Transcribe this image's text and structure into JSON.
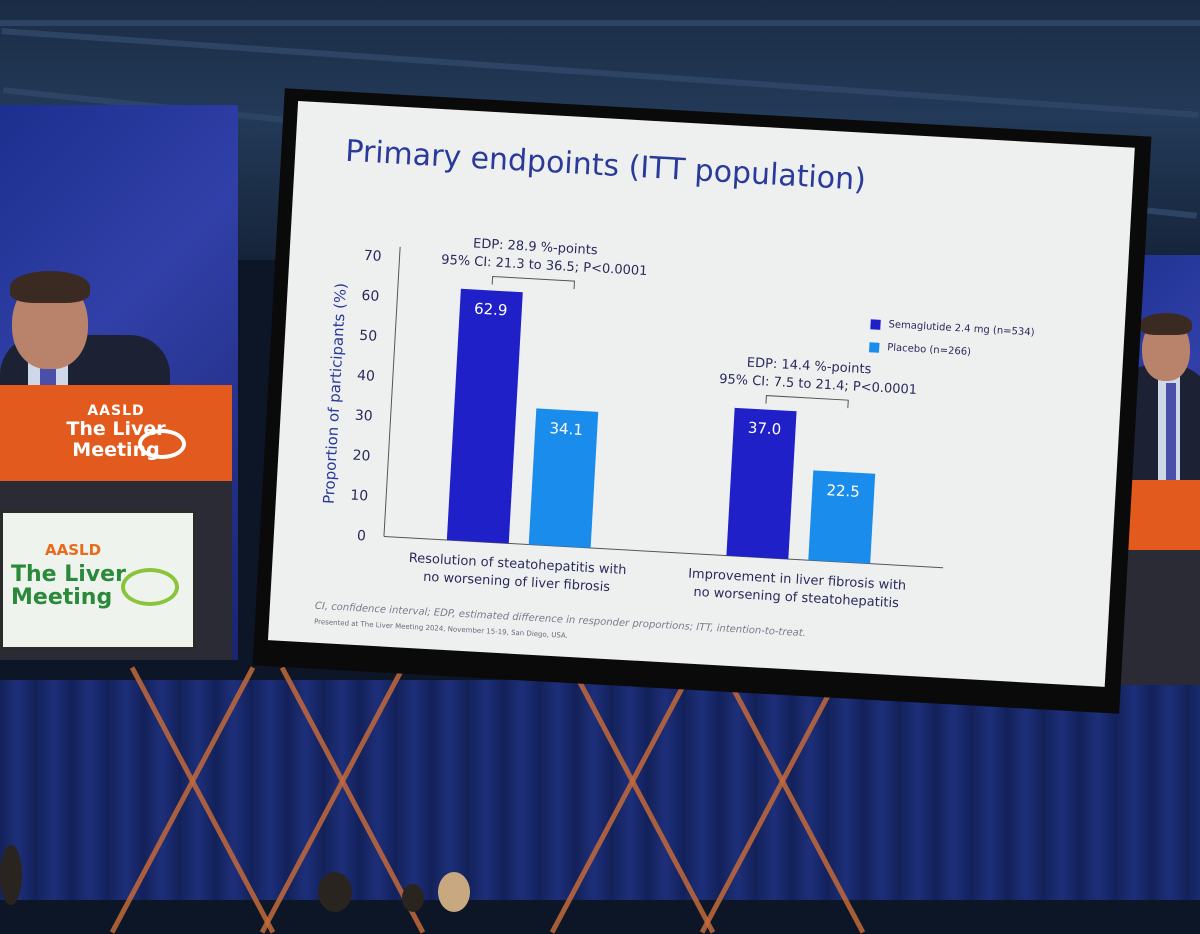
{
  "slide": {
    "title": "Primary endpoints (ITT population)",
    "footnote": "CI, confidence interval; EDP, estimated difference in responder proportions; ITT, intention-to-treat.",
    "presented": "Presented at The Liver Meeting 2024, November 15-19, San Diego, USA."
  },
  "branding": {
    "org": "AASLD",
    "meeting_line1": "The Liver",
    "meeting_line2": "Meeting",
    "registered": "®"
  },
  "chart_data": {
    "type": "bar",
    "ylabel": "Proportion of participants (%)",
    "ylim": [
      0,
      70
    ],
    "yticks": [
      0,
      10,
      20,
      30,
      40,
      50,
      60,
      70
    ],
    "categories": [
      [
        "Resolution of steatohepatitis with",
        "no worsening of liver fibrosis"
      ],
      [
        "Improvement in liver fibrosis with",
        "no worsening of steatohepatitis"
      ]
    ],
    "series": [
      {
        "name": "Semaglutide 2.4 mg (n=534)",
        "color": "#2020c8",
        "values": [
          62.9,
          37.0
        ],
        "labels": [
          "62.9",
          "37.0"
        ]
      },
      {
        "name": "Placebo (n=266)",
        "color": "#1a8cec",
        "values": [
          34.1,
          22.5
        ],
        "labels": [
          "34.1",
          "22.5"
        ]
      }
    ],
    "annotations": [
      {
        "line1": "EDP: 28.9 %-points",
        "line2": "95% CI: 21.3 to 36.5; P<0.0001"
      },
      {
        "line1": "EDP: 14.4 %-points",
        "line2": "95% CI: 7.5 to 21.4; P<0.0001"
      }
    ]
  }
}
